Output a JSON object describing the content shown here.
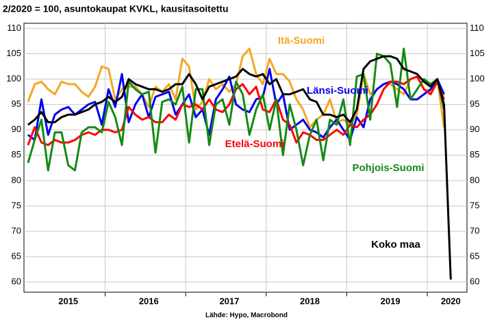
{
  "chart_data": {
    "type": "line",
    "title": "2/2020 = 100, asuntokaupat KVKL, kausitasoitettu",
    "source": "Lähde: Hypo, Macrobond",
    "categories": [
      null,
      null,
      null,
      null,
      null,
      null,
      "2015",
      null,
      null,
      null,
      null,
      null,
      null,
      null,
      null,
      null,
      null,
      null,
      "2016",
      null,
      null,
      null,
      null,
      null,
      null,
      null,
      null,
      null,
      null,
      null,
      "2017",
      null,
      null,
      null,
      null,
      null,
      null,
      null,
      null,
      null,
      null,
      null,
      "2018",
      null,
      null,
      null,
      null,
      null,
      null,
      null,
      null,
      null,
      null,
      null,
      "2019",
      null,
      null,
      null,
      null,
      null,
      null,
      null,
      null,
      "2020"
    ],
    "ylim": [
      58,
      111
    ],
    "yticks": [
      60,
      65,
      70,
      75,
      80,
      85,
      90,
      95,
      100,
      105,
      110
    ],
    "grid": true,
    "series": [
      {
        "name": "Itä-Suomi",
        "color": "#f5a623",
        "values": [
          95.5,
          99,
          99.5,
          98,
          97,
          99.5,
          99,
          99,
          97.5,
          96.5,
          98.5,
          102.5,
          102,
          96,
          98,
          98.5,
          98.5,
          97,
          94.5,
          98.5,
          97.5,
          99,
          96,
          104,
          102.5,
          94,
          95.5,
          100,
          98,
          99,
          97.5,
          99,
          104.5,
          106,
          101,
          99,
          104,
          101,
          101,
          99.5,
          96,
          94,
          90.5,
          92,
          93,
          96,
          91.5,
          92,
          91,
          93,
          101,
          97,
          98,
          99,
          99,
          98,
          97,
          100,
          100.5,
          98,
          97.5,
          100,
          90.5,
          null
        ]
      },
      {
        "name": "Länsi-Suomi",
        "color": "#0000ee",
        "values": [
          89,
          88,
          96,
          89,
          93,
          94,
          94.5,
          93,
          94,
          95,
          95.5,
          91,
          98,
          94.5,
          101,
          91.5,
          95,
          97,
          92.5,
          96.5,
          97,
          97.5,
          93,
          95,
          97,
          92.5,
          94,
          89,
          96,
          98,
          100.5,
          95,
          94,
          93.5,
          96,
          96.5,
          102,
          95,
          97,
          90,
          91,
          92,
          90,
          89.5,
          88.5,
          90.5,
          92,
          90,
          88,
          92.5,
          90.5,
          96,
          98,
          99,
          99.5,
          99,
          98,
          96,
          96,
          97,
          98,
          100,
          97,
          null
        ]
      },
      {
        "name": "Etelä-Suomi",
        "color": "#ff0000",
        "values": [
          87,
          90.5,
          87.5,
          87,
          88,
          87.5,
          87.5,
          88,
          89,
          89.5,
          89,
          90,
          90,
          89.5,
          90,
          94.5,
          93,
          92,
          92.5,
          91.5,
          91.5,
          93,
          92,
          95,
          94.5,
          95,
          94,
          96,
          94,
          93.5,
          95,
          98,
          99,
          97,
          98.5,
          94,
          93.5,
          96,
          92,
          91,
          87.5,
          89.5,
          89,
          88,
          88,
          89,
          90,
          89,
          91,
          90.5,
          92,
          93,
          95,
          98,
          99.5,
          99.5,
          99,
          100,
          100.5,
          98,
          97,
          99.5,
          96,
          null
        ]
      },
      {
        "name": "Pohjois-Suomi",
        "color": "#138a13",
        "values": [
          83.5,
          88,
          92,
          82,
          89.5,
          89.5,
          83,
          82,
          89.5,
          90.5,
          90.5,
          89.5,
          95.5,
          92.5,
          87,
          99.5,
          98,
          97,
          97.5,
          85.5,
          95.5,
          96,
          95,
          98.5,
          87.5,
          98,
          98,
          87,
          95,
          96,
          91,
          99.5,
          97,
          89,
          94,
          97,
          90,
          96,
          85,
          95,
          90,
          83,
          89,
          92,
          84,
          92,
          91,
          96,
          87,
          100.5,
          101,
          92,
          105,
          104.5,
          103,
          94.5,
          106,
          96,
          98,
          100,
          99,
          100,
          94,
          null
        ]
      },
      {
        "name": "Koko maa",
        "color": "#000000",
        "values": [
          91,
          92,
          93.5,
          91.5,
          91.5,
          92.5,
          93,
          93,
          93.5,
          94,
          95,
          95.5,
          96.5,
          95.5,
          96.5,
          100,
          99,
          98.5,
          98,
          98,
          97.5,
          98,
          99,
          99,
          101,
          99,
          96,
          98.5,
          99,
          99.5,
          100,
          100.5,
          102,
          101,
          100.5,
          101,
          99,
          100,
          97,
          97,
          97.5,
          98,
          96,
          95.5,
          93,
          93,
          92.5,
          93,
          91.5,
          94,
          102,
          103.5,
          104,
          104.5,
          104.5,
          104,
          102,
          101.5,
          101,
          99.5,
          98.5,
          100,
          95,
          60.5
        ]
      }
    ]
  }
}
